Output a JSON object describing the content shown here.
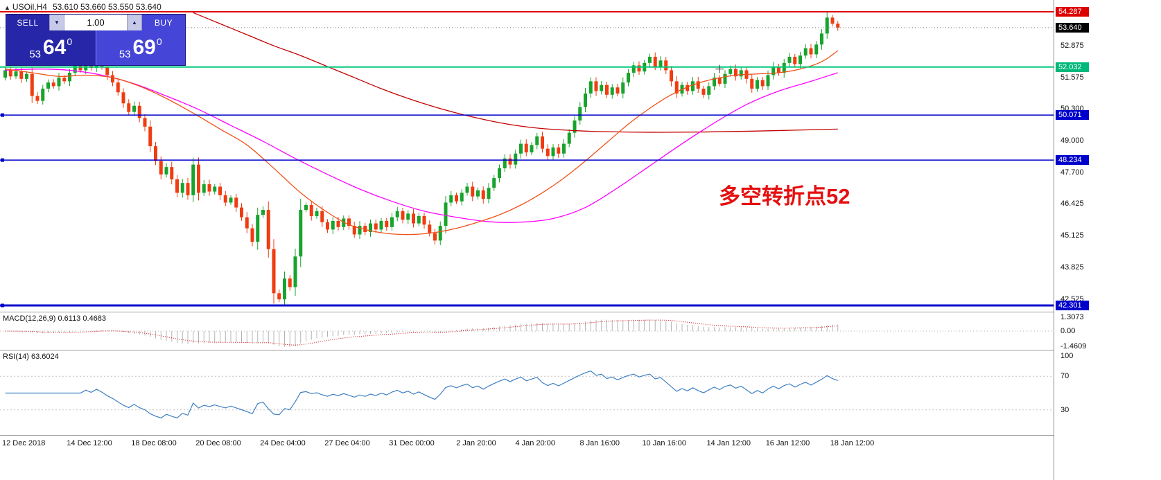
{
  "window": {
    "title": "USOil,H4",
    "ohlc": "53.610 53.660 53.550 53.640"
  },
  "icons": {
    "chart_up": "▲",
    "volume_down": "▼",
    "volume_up": "▲"
  },
  "oct": {
    "sell_label": "SELL",
    "buy_label": "BUY",
    "volume": "1.00",
    "sell_price": {
      "prefix": "53",
      "big": "64",
      "sup": "0"
    },
    "buy_price": {
      "prefix": "53",
      "big": "69",
      "sup": "0"
    }
  },
  "annotation": {
    "text": "多空转折点52",
    "color": "#e60e0e"
  },
  "indicators": {
    "macd_label": "MACD(12,26,9) 0.6113 0.4683",
    "rsi_label": "RSI(14) 63.6024",
    "macd_scale": [
      {
        "text": "1.3073",
        "value": 1.3073
      },
      {
        "text": "0.00",
        "value": 0
      },
      {
        "text": "-1.4609",
        "value": -1.4609
      }
    ],
    "rsi_scale": [
      {
        "text": "100",
        "value": 100
      },
      {
        "text": "70",
        "value": 70
      },
      {
        "text": "30",
        "value": 30
      }
    ],
    "rsi_levels": [
      70,
      30
    ]
  },
  "price_scale": {
    "ticks": [
      "52.875",
      "51.575",
      "50.300",
      "49.000",
      "47.700",
      "46.425",
      "45.125",
      "43.825",
      "42.525"
    ],
    "badges": [
      {
        "text": "54.287",
        "price": 54.287,
        "bg": "#dd0000"
      },
      {
        "text": "53.640",
        "price": 53.64,
        "bg": "#000000"
      },
      {
        "text": "52.032",
        "price": 52.032,
        "bg": "#00b87a"
      },
      {
        "text": "50.071",
        "price": 50.071,
        "bg": "#0000cc"
      },
      {
        "text": "48.234",
        "price": 48.234,
        "bg": "#0000cc"
      },
      {
        "text": "42.301",
        "price": 42.301,
        "bg": "#0000cc"
      }
    ]
  },
  "chart_data": {
    "type": "candlestick",
    "symbol": "USOil",
    "timeframe": "H4",
    "first_open": 51.6,
    "closes": [
      51.9,
      51.65,
      51.85,
      51.55,
      51.75,
      50.85,
      50.65,
      51.15,
      51.4,
      51.25,
      51.6,
      51.45,
      51.8,
      52.1,
      51.9,
      52.2,
      52.0,
      52.3,
      52.05,
      51.7,
      51.4,
      51.0,
      50.55,
      50.2,
      50.45,
      49.95,
      49.6,
      48.8,
      48.2,
      47.65,
      47.95,
      47.45,
      46.9,
      47.3,
      46.8,
      48.05,
      46.9,
      47.25,
      46.95,
      47.15,
      46.8,
      46.5,
      46.7,
      46.3,
      45.9,
      45.45,
      44.9,
      46.0,
      46.2,
      44.6,
      42.8,
      42.55,
      43.4,
      43.05,
      44.3,
      46.2,
      46.4,
      45.95,
      46.15,
      45.7,
      45.4,
      45.75,
      45.5,
      45.85,
      45.55,
      45.2,
      45.55,
      45.3,
      45.65,
      45.4,
      45.75,
      45.5,
      45.9,
      46.15,
      45.8,
      46.05,
      45.65,
      45.95,
      45.6,
      45.25,
      44.95,
      45.55,
      46.5,
      46.8,
      46.55,
      46.9,
      47.15,
      46.75,
      47.0,
      46.65,
      47.1,
      47.5,
      47.9,
      48.3,
      48.05,
      48.5,
      48.9,
      48.55,
      48.85,
      49.2,
      48.7,
      48.4,
      48.75,
      48.5,
      48.9,
      49.35,
      49.85,
      50.4,
      50.95,
      51.45,
      51.05,
      51.3,
      50.9,
      51.2,
      50.95,
      51.4,
      51.8,
      52.1,
      51.85,
      52.2,
      52.45,
      52.05,
      52.3,
      51.9,
      51.45,
      50.95,
      51.3,
      51.05,
      51.45,
      51.15,
      50.9,
      51.25,
      51.6,
      51.35,
      51.75,
      51.95,
      51.65,
      51.9,
      51.55,
      51.15,
      51.5,
      51.25,
      51.7,
      52.05,
      51.8,
      52.2,
      52.45,
      52.15,
      52.5,
      52.8,
      52.55,
      52.95,
      53.4,
      54.05,
      53.8,
      53.64
    ],
    "colors": {
      "up": "#18a32c",
      "down": "#ef3c10"
    },
    "h_lines": [
      {
        "price": 54.287,
        "color": "#dd0000",
        "width": 2
      },
      {
        "price": 53.64,
        "color": "#777777",
        "width": 1,
        "dash": "1 3"
      },
      {
        "price": 52.032,
        "color": "#00c87d",
        "width": 2
      },
      {
        "price": 50.071,
        "color": "#0000cc",
        "width": 1.5,
        "handle": true
      },
      {
        "price": 48.234,
        "color": "#0000cc",
        "width": 1.5,
        "handle": true
      },
      {
        "price": 42.301,
        "color": "#0000cc",
        "width": 3,
        "handle": true
      }
    ],
    "moving_averages": [
      {
        "name": "ma-slow",
        "color": "#c40000",
        "points": [
          [
            35,
            54.25
          ],
          [
            40,
            53.8
          ],
          [
            45,
            53.35
          ],
          [
            50,
            52.9
          ],
          [
            55,
            52.5
          ],
          [
            60,
            52.05
          ],
          [
            65,
            51.6
          ],
          [
            70,
            51.15
          ],
          [
            75,
            50.75
          ],
          [
            80,
            50.4
          ],
          [
            85,
            50.1
          ],
          [
            90,
            49.85
          ],
          [
            95,
            49.65
          ],
          [
            100,
            49.52
          ],
          [
            105,
            49.45
          ],
          [
            110,
            49.4
          ],
          [
            120,
            49.37
          ],
          [
            130,
            49.38
          ],
          [
            140,
            49.42
          ],
          [
            150,
            49.47
          ],
          [
            155,
            49.5
          ]
        ]
      },
      {
        "name": "ma-mid",
        "color": "#ff00ff",
        "points": [
          [
            0,
            51.9
          ],
          [
            6,
            51.95
          ],
          [
            12,
            51.9
          ],
          [
            18,
            51.7
          ],
          [
            24,
            51.35
          ],
          [
            30,
            50.85
          ],
          [
            36,
            50.3
          ],
          [
            42,
            49.65
          ],
          [
            48,
            49.0
          ],
          [
            54,
            48.3
          ],
          [
            60,
            47.65
          ],
          [
            66,
            47.05
          ],
          [
            72,
            46.55
          ],
          [
            78,
            46.15
          ],
          [
            84,
            45.9
          ],
          [
            90,
            45.72
          ],
          [
            96,
            45.7
          ],
          [
            102,
            45.85
          ],
          [
            108,
            46.3
          ],
          [
            114,
            47.1
          ],
          [
            120,
            48.0
          ],
          [
            126,
            48.9
          ],
          [
            132,
            49.75
          ],
          [
            138,
            50.5
          ],
          [
            144,
            51.05
          ],
          [
            150,
            51.45
          ],
          [
            155,
            51.8
          ]
        ]
      },
      {
        "name": "ma-fast",
        "color": "#f05018",
        "points": [
          [
            0,
            51.95
          ],
          [
            5,
            51.8
          ],
          [
            10,
            51.65
          ],
          [
            15,
            51.7
          ],
          [
            20,
            51.6
          ],
          [
            25,
            51.25
          ],
          [
            30,
            50.75
          ],
          [
            35,
            50.15
          ],
          [
            40,
            49.5
          ],
          [
            45,
            48.85
          ],
          [
            50,
            47.9
          ],
          [
            55,
            46.9
          ],
          [
            60,
            46.1
          ],
          [
            64,
            45.6
          ],
          [
            68,
            45.35
          ],
          [
            72,
            45.22
          ],
          [
            76,
            45.2
          ],
          [
            80,
            45.28
          ],
          [
            84,
            45.45
          ],
          [
            88,
            45.7
          ],
          [
            92,
            46.0
          ],
          [
            96,
            46.4
          ],
          [
            100,
            46.9
          ],
          [
            104,
            47.5
          ],
          [
            108,
            48.2
          ],
          [
            112,
            48.95
          ],
          [
            116,
            49.7
          ],
          [
            120,
            50.35
          ],
          [
            124,
            50.9
          ],
          [
            128,
            51.3
          ],
          [
            132,
            51.55
          ],
          [
            136,
            51.7
          ],
          [
            140,
            51.75
          ],
          [
            144,
            51.8
          ],
          [
            148,
            51.95
          ],
          [
            152,
            52.25
          ],
          [
            155,
            52.7
          ]
        ]
      }
    ],
    "time_ticks": [
      {
        "i": 0,
        "label": "12 Dec 2018"
      },
      {
        "i": 16,
        "label": "14 Dec 12:00"
      },
      {
        "i": 28,
        "label": "18 Dec 08:00"
      },
      {
        "i": 40,
        "label": "20 Dec 08:00"
      },
      {
        "i": 52,
        "label": "24 Dec 04:00"
      },
      {
        "i": 64,
        "label": "27 Dec 04:00"
      },
      {
        "i": 76,
        "label": "31 Dec 00:00"
      },
      {
        "i": 88,
        "label": "2 Jan 20:00"
      },
      {
        "i": 99,
        "label": "4 Jan 20:00"
      },
      {
        "i": 111,
        "label": "8 Jan 16:00"
      },
      {
        "i": 123,
        "label": "10 Jan 16:00"
      },
      {
        "i": 135,
        "label": "14 Jan 12:00"
      },
      {
        "i": 146,
        "label": "16 Jan 12:00"
      },
      {
        "i": 158,
        "label": "18 Jan 12:00"
      }
    ],
    "cursor": {
      "i": 133,
      "price": 51.95
    },
    "macd": {
      "fast": 12,
      "slow": 26,
      "signal": 9,
      "histogram_color": "#b4b4b4",
      "signal_color": "#cc0000"
    },
    "rsi": {
      "period": 14,
      "color": "#3e7fc1"
    }
  }
}
